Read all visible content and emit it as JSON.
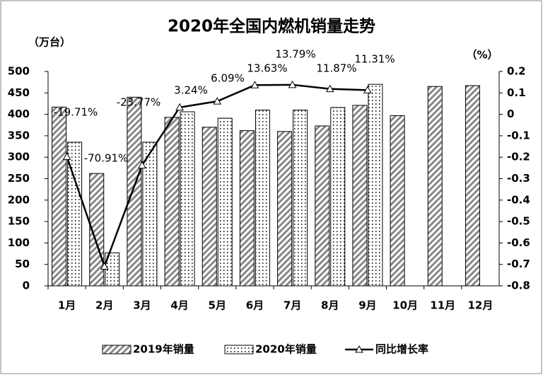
{
  "chart_data": {
    "type": "bar_line",
    "title": "2020年全国内燃机销量走势",
    "y_axis_label": "（万台）",
    "y2_axis_label": "（%）",
    "categories": [
      "1月",
      "2月",
      "3月",
      "4月",
      "5月",
      "6月",
      "7月",
      "8月",
      "9月",
      "10月",
      "11月",
      "12月"
    ],
    "series": [
      {
        "name": "2019年销量",
        "type": "bar",
        "color": "#888888",
        "pattern": "diagonal",
        "values": [
          417,
          262,
          440,
          393,
          370,
          362,
          360,
          373,
          421,
          397,
          465,
          467
        ]
      },
      {
        "name": "2020年销量",
        "type": "bar",
        "color": "#555555",
        "pattern": "dots",
        "values": [
          335,
          77,
          335,
          406,
          391,
          410,
          410,
          416,
          470,
          null,
          null,
          null
        ]
      },
      {
        "name": "同比增长率",
        "type": "line",
        "axis": "y2",
        "color": "#000000",
        "values": [
          -0.1971,
          -0.7091,
          -0.2377,
          0.0324,
          0.0609,
          0.1363,
          0.1379,
          0.1187,
          0.1131,
          null,
          null,
          null
        ],
        "value_labels": [
          "-19.71%",
          "-70.91%",
          "-23.77%",
          "3.24%",
          "6.09%",
          "13.63%",
          "13.79%",
          "11.87%",
          "11.31%",
          null,
          null,
          null
        ]
      }
    ],
    "ylim": [
      0,
      500
    ],
    "yticks": [
      0,
      50,
      100,
      150,
      200,
      250,
      300,
      350,
      400,
      450,
      500
    ],
    "y2lim": [
      -0.8,
      0.2
    ],
    "y2ticks": [
      -0.8,
      -0.7,
      -0.6,
      -0.5,
      -0.4,
      -0.3,
      -0.2,
      -0.1,
      0,
      0.1,
      0.2
    ],
    "legend": "bottom"
  }
}
